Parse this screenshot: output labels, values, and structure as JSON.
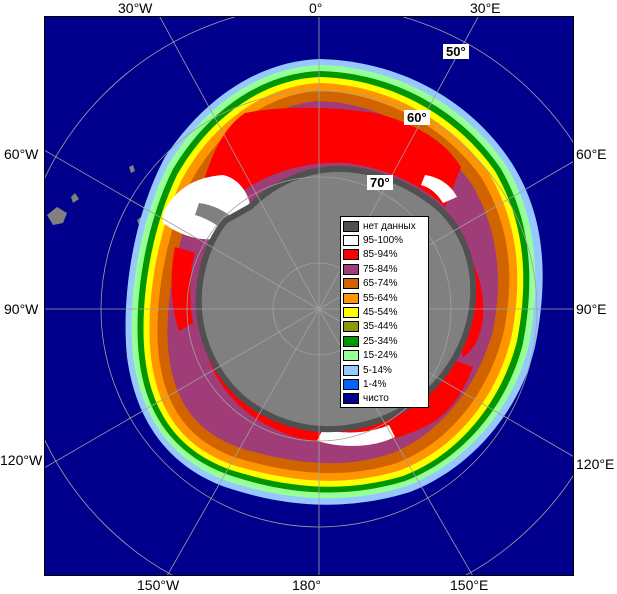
{
  "map": {
    "top_labels": {
      "w30": "30°W",
      "zero": "0°",
      "e30": "30°E"
    },
    "left_labels": {
      "w60": "60°W",
      "w90": "90°W",
      "w120": "120°W"
    },
    "right_labels": {
      "e60": "60°E",
      "e90": "90°E",
      "e120": "120°E"
    },
    "bottom_labels": {
      "w150": "150°W",
      "deg180": "180°",
      "e150": "150°E"
    },
    "lat_labels": {
      "lat50": "50°",
      "lat60": "60°",
      "lat70": "70°"
    }
  },
  "legend": {
    "items": [
      {
        "label": "нет данных",
        "color": "#505050"
      },
      {
        "label": "95-100%",
        "color": "#ffffff"
      },
      {
        "label": "85-94%",
        "color": "#ff0000"
      },
      {
        "label": "75-84%",
        "color": "#a03c78"
      },
      {
        "label": "65-74%",
        "color": "#d26400"
      },
      {
        "label": "55-64%",
        "color": "#ff9600"
      },
      {
        "label": "45-54%",
        "color": "#ffff00"
      },
      {
        "label": "35-44%",
        "color": "#8c9600"
      },
      {
        "label": "25-34%",
        "color": "#009600"
      },
      {
        "label": "15-24%",
        "color": "#96ff96"
      },
      {
        "label": "5-14%",
        "color": "#96c8ff"
      },
      {
        "label": "1-4%",
        "color": "#0064ff"
      },
      {
        "label": "чисто",
        "color": "#00008c"
      }
    ]
  },
  "colors": {
    "ocean": "#00008c",
    "land": "#808080",
    "graticule": "#a0a0a0"
  }
}
